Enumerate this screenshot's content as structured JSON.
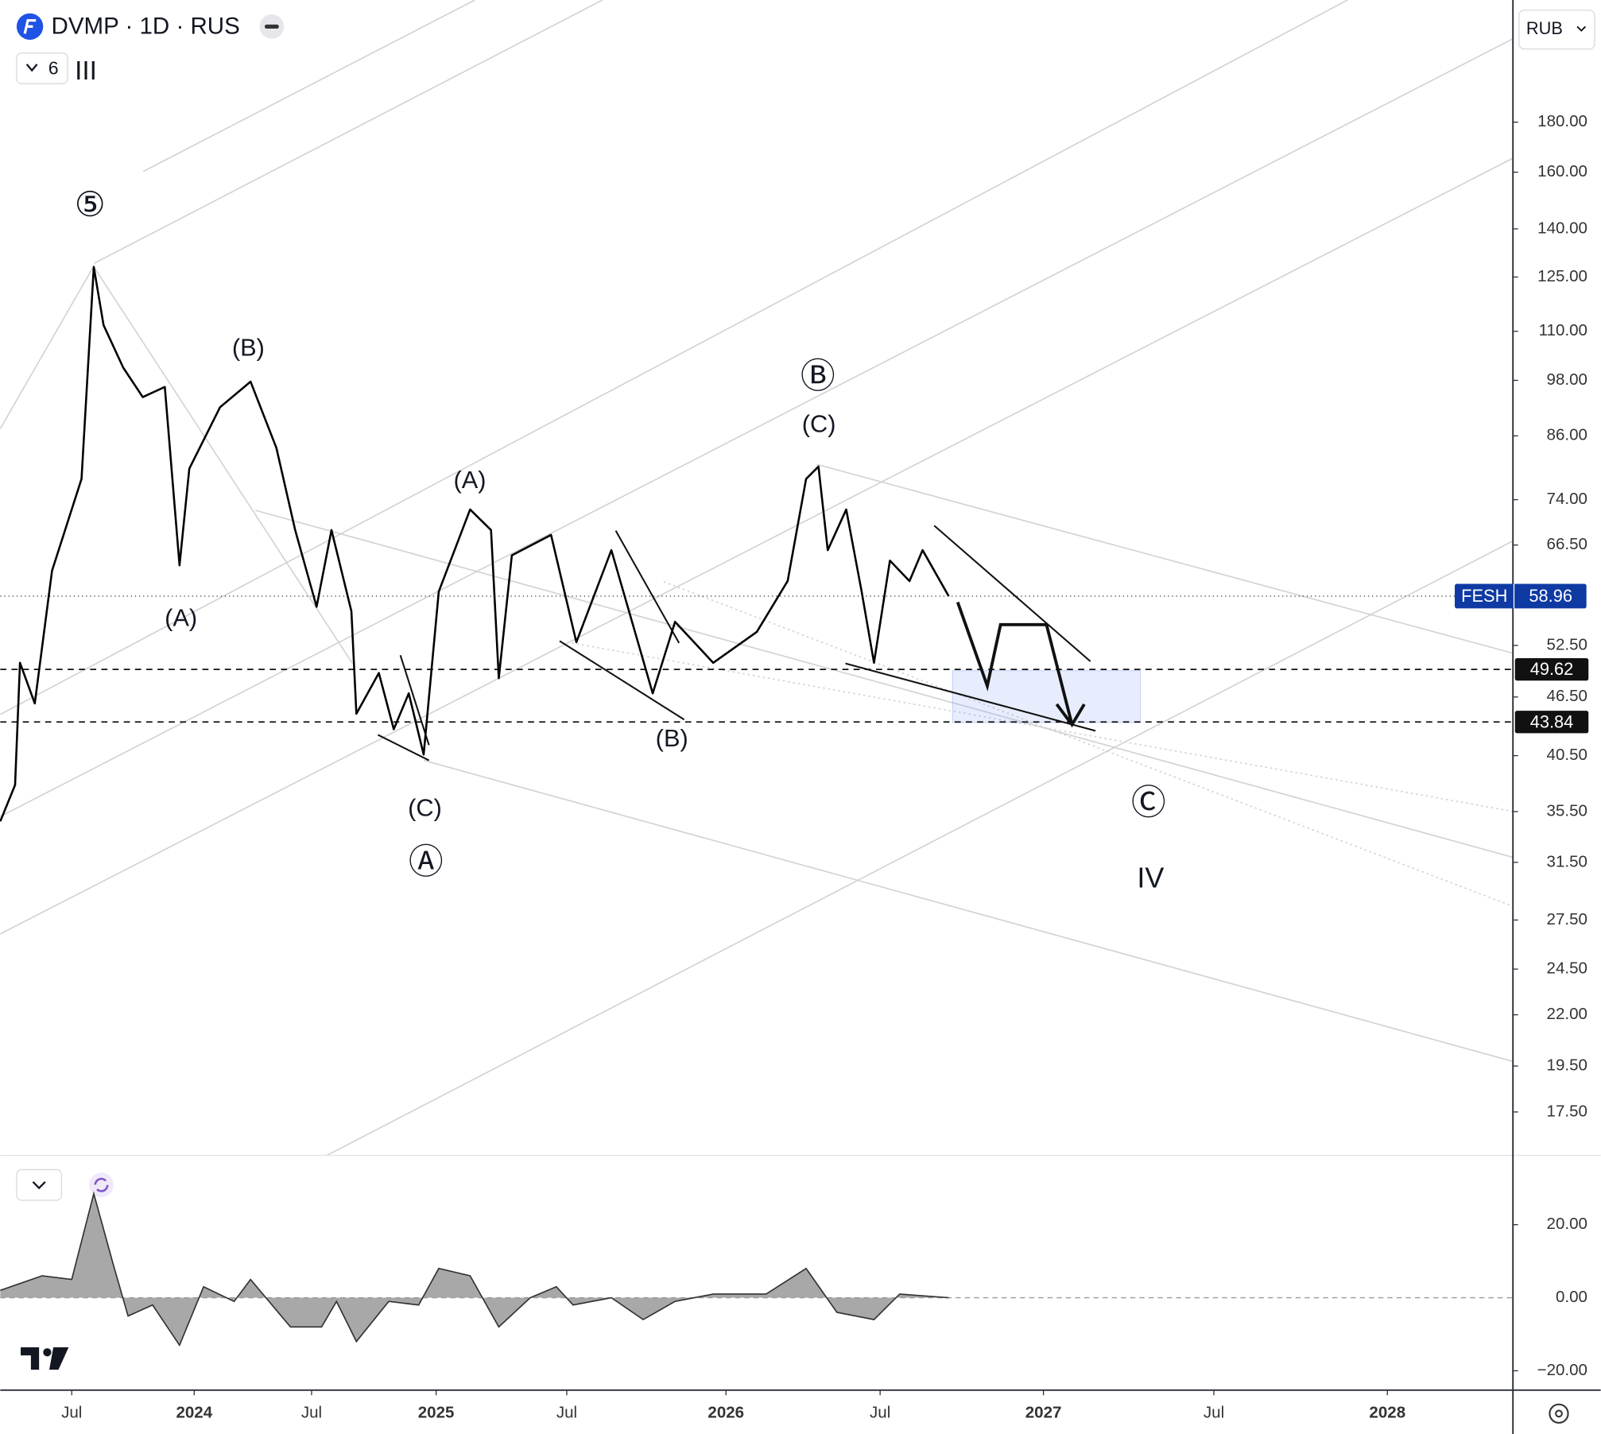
{
  "chart_data": [
    {
      "type": "line",
      "title": "DVMP · 1D · RUS",
      "currency": "RUB",
      "indicator_count": 6,
      "wave_degree": "III",
      "color": "#000000",
      "log_scale": true,
      "x": [
        2023.21,
        2023.27,
        2023.29,
        2023.35,
        2023.42,
        2023.54,
        2023.59,
        2023.63,
        2023.71,
        2023.79,
        2023.88,
        2023.94,
        2023.98,
        2024.11,
        2024.24,
        2024.35,
        2024.43,
        2024.52,
        2024.58,
        2024.66,
        2024.68,
        2024.77,
        2024.83,
        2024.89,
        2024.95,
        2025.01,
        2025.13,
        2025.21,
        2025.24,
        2025.29,
        2025.44,
        2025.53,
        2025.64,
        2025.77,
        2025.84,
        2025.96,
        2026.1,
        2026.2,
        2026.26,
        2026.3,
        2026.33,
        2026.39,
        2026.44,
        2026.48,
        2026.53,
        2026.59,
        2026.63,
        2026.71
      ],
      "values": [
        34.7,
        37.8,
        50.4,
        45.8,
        62.6,
        77.7,
        128,
        111.6,
        101,
        94.2,
        96.5,
        63.4,
        79.6,
        92,
        97.7,
        83.6,
        68.9,
        57.5,
        68.9,
        56.9,
        44.7,
        49.2,
        43.1,
        46.9,
        40.6,
        59.6,
        72.3,
        68.9,
        48.6,
        64.9,
        68.1,
        52.9,
        65.7,
        46.9,
        55.5,
        50.4,
        54.2,
        61.1,
        77.7,
        80,
        65.7,
        72.3,
        59.6,
        50.4,
        64.1,
        61.1,
        65.7,
        58.96
      ],
      "xlim": [
        2023.21,
        2028.36
      ],
      "xticks": [
        {
          "value": 2023.5,
          "label": "Jul"
        },
        2024,
        {
          "value": 2024.5,
          "label": "Jul"
        },
        2025,
        {
          "value": 2025.5,
          "label": "Jul"
        },
        2026,
        {
          "value": 2026.5,
          "label": "Jul"
        },
        2027,
        {
          "value": 2027.5,
          "label": "Jul"
        },
        2028
      ],
      "ylim": [
        15.8,
        240
      ],
      "yticks": [
        {
          "value": 180,
          "label": "180.00"
        },
        {
          "value": 160,
          "label": "160.00"
        },
        {
          "value": 140,
          "label": "140.00"
        },
        {
          "value": 125,
          "label": "125.00"
        },
        {
          "value": 110,
          "label": "110.00"
        },
        {
          "value": 98,
          "label": "98.00"
        },
        {
          "value": 86,
          "label": "86.00"
        },
        {
          "value": 74,
          "label": "74.00"
        },
        {
          "value": 66.5,
          "label": "66.50"
        },
        {
          "value": 52.5,
          "label": "52.50"
        },
        {
          "value": 46.5,
          "label": "46.50"
        },
        {
          "value": 40.5,
          "label": "40.50"
        },
        {
          "value": 35.5,
          "label": "35.50"
        },
        {
          "value": 31.5,
          "label": "31.50"
        },
        {
          "value": 27.5,
          "label": "27.50"
        },
        {
          "value": 24.5,
          "label": "24.50"
        },
        {
          "value": 22,
          "label": "22.00"
        },
        {
          "value": 19.5,
          "label": "19.50"
        },
        {
          "value": 17.5,
          "label": "17.50"
        }
      ],
      "last_price": {
        "name": "FESH",
        "value": 58.96,
        "color": "#0f3aa3"
      },
      "price_lines": [
        49.62,
        43.84
      ],
      "annotations": [
        "⑤",
        "(B)",
        "(A)",
        "(A)",
        "(C)",
        "Ⓐ",
        "(B)",
        "Ⓑ",
        "(C)",
        "Ⓒ",
        "IV"
      ]
    },
    {
      "type": "area",
      "color": "#999999",
      "x": [
        2023.21,
        2023.38,
        2023.5,
        2023.59,
        2023.67,
        2023.73,
        2023.83,
        2023.94,
        2024.04,
        2024.17,
        2024.24,
        2024.41,
        2024.54,
        2024.6,
        2024.68,
        2024.81,
        2024.93,
        2025.01,
        2025.13,
        2025.24,
        2025.36,
        2025.46,
        2025.52,
        2025.64,
        2025.74,
        2025.84,
        2025.96,
        2026.13,
        2026.26,
        2026.36,
        2026.48,
        2026.56,
        2026.71
      ],
      "values": [
        2,
        6,
        5,
        28.5,
        9,
        -5,
        -2,
        -13,
        3,
        -1,
        5,
        -8,
        -8,
        -1,
        -12,
        -1,
        -2,
        8,
        6,
        -8,
        0,
        3,
        -2,
        0,
        -6,
        -1,
        1,
        1,
        8,
        -4,
        -6,
        1,
        0
      ],
      "ylim": [
        -25.3,
        38.7
      ],
      "yticks": [
        {
          "value": 20,
          "label": "20.00"
        },
        {
          "value": 0,
          "label": "0.00"
        },
        {
          "value": -20,
          "label": "−20.00"
        }
      ]
    }
  ]
}
